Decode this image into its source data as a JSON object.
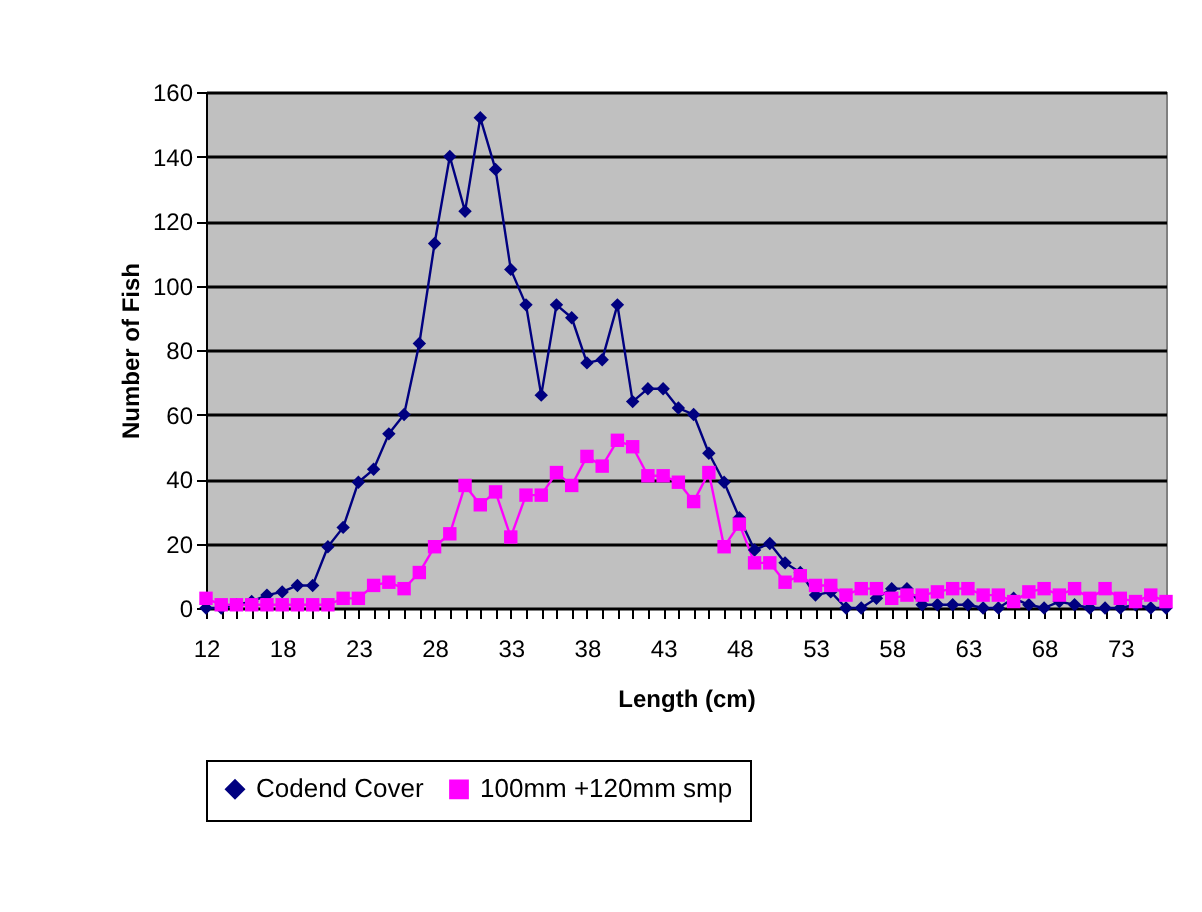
{
  "chart_data": {
    "type": "line",
    "xlabel": "Length (cm)",
    "ylabel": "Number of Fish",
    "categories": [
      "12",
      null,
      null,
      null,
      null,
      "18",
      null,
      null,
      null,
      null,
      "23",
      null,
      null,
      null,
      null,
      "28",
      null,
      null,
      null,
      null,
      "33",
      null,
      null,
      null,
      null,
      "38",
      null,
      null,
      null,
      null,
      "43",
      null,
      null,
      null,
      null,
      "48",
      null,
      null,
      null,
      null,
      "53",
      null,
      null,
      null,
      null,
      "58",
      null,
      null,
      null,
      null,
      "63",
      null,
      null,
      null,
      null,
      "68",
      null,
      null,
      null,
      null,
      "73",
      null,
      null,
      null
    ],
    "series": [
      {
        "name": "Codend Cover",
        "color": "#000080",
        "marker": "diamond",
        "values": [
          0,
          0,
          1,
          2,
          4,
          5,
          7,
          7,
          19,
          25,
          39,
          43,
          54,
          60,
          82,
          113,
          140,
          123,
          152,
          136,
          105,
          94,
          66,
          94,
          90,
          76,
          77,
          94,
          64,
          68,
          68,
          62,
          60,
          48,
          39,
          28,
          18,
          20,
          14,
          11,
          4,
          5,
          0,
          0,
          3,
          6,
          6,
          1,
          1,
          1,
          1,
          0,
          0,
          3,
          1,
          0,
          2,
          1,
          0,
          0,
          0,
          1,
          0,
          0
        ]
      },
      {
        "name": "100mm +120mm smp",
        "color": "#ff00ff",
        "marker": "square",
        "values": [
          3,
          1,
          1,
          1,
          1,
          1,
          1,
          1,
          1,
          3,
          3,
          7,
          8,
          6,
          11,
          19,
          23,
          38,
          32,
          36,
          22,
          35,
          35,
          42,
          38,
          47,
          44,
          52,
          50,
          41,
          41,
          39,
          33,
          42,
          19,
          26,
          14,
          14,
          8,
          10,
          7,
          7,
          4,
          6,
          6,
          3,
          4,
          4,
          5,
          6,
          6,
          4,
          4,
          2,
          5,
          6,
          4,
          6,
          3,
          6,
          3,
          2,
          4,
          2
        ]
      }
    ],
    "ylim": [
      0,
      160
    ],
    "yticks": [
      0,
      20,
      40,
      60,
      80,
      100,
      120,
      140,
      160
    ],
    "grid": "y",
    "legend": "bottom",
    "line_style": "solid"
  }
}
